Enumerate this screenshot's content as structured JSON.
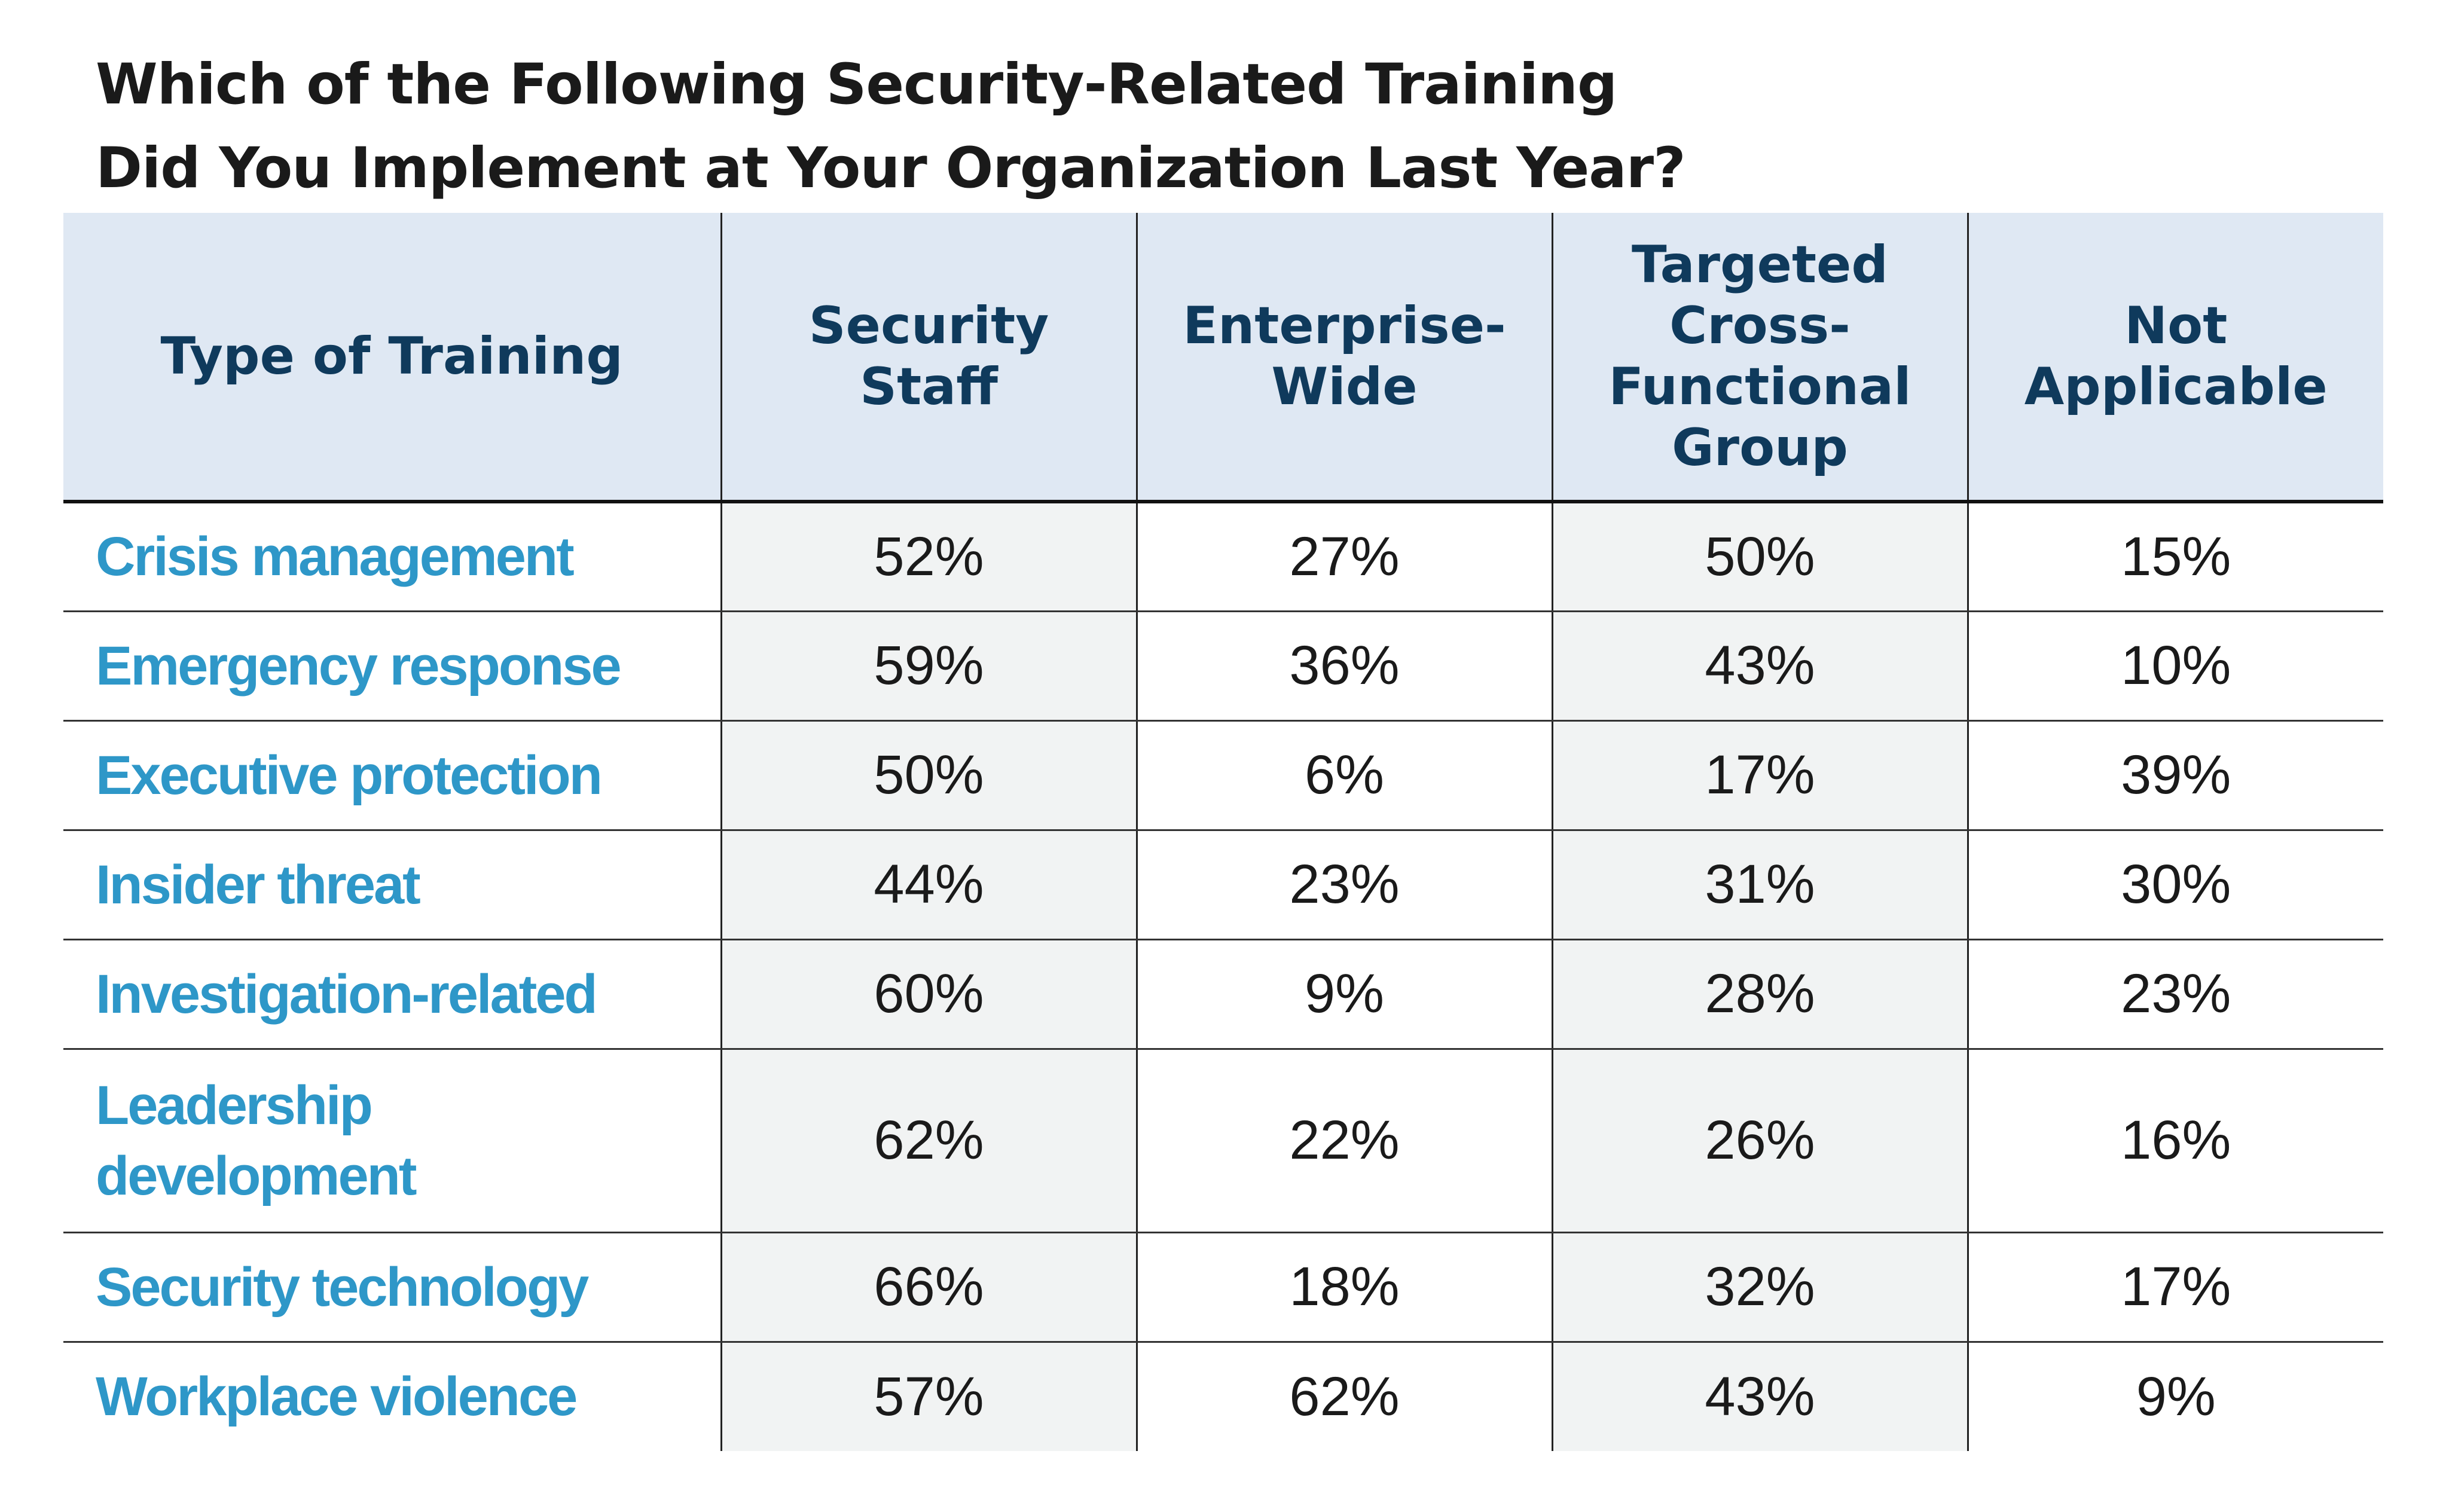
{
  "chart_data": {
    "type": "table",
    "title_lines": [
      "Which of the Following Security-Related Training",
      "Did You Implement at Your Organization Last Year?"
    ],
    "columns": [
      [
        "Type of Training"
      ],
      [
        "Security",
        "Staff"
      ],
      [
        "Enterprise-",
        "Wide"
      ],
      [
        "Targeted",
        "Cross-",
        "Functional",
        "Group"
      ],
      [
        "Not",
        "Applicable"
      ]
    ],
    "rows": [
      {
        "label": [
          "Crisis management"
        ],
        "values": [
          "52%",
          "27%",
          "50%",
          "15%"
        ]
      },
      {
        "label": [
          "Emergency response"
        ],
        "values": [
          "59%",
          "36%",
          "43%",
          "10%"
        ]
      },
      {
        "label": [
          "Executive protection"
        ],
        "values": [
          "50%",
          "6%",
          "17%",
          "39%"
        ]
      },
      {
        "label": [
          "Insider threat"
        ],
        "values": [
          "44%",
          "23%",
          "31%",
          "30%"
        ]
      },
      {
        "label": [
          "Investigation-related"
        ],
        "values": [
          "60%",
          "9%",
          "28%",
          "23%"
        ]
      },
      {
        "label": [
          "Leadership",
          "development"
        ],
        "values": [
          "62%",
          "22%",
          "26%",
          "16%"
        ]
      },
      {
        "label": [
          "Security technology"
        ],
        "values": [
          "66%",
          "18%",
          "32%",
          "17%"
        ]
      },
      {
        "label": [
          "Workplace violence"
        ],
        "values": [
          "57%",
          "62%",
          "43%",
          "9%"
        ]
      }
    ],
    "colors": {
      "header_bg": "#dfe8f3",
      "header_text": "#0f3a5c",
      "row_label": "#2e97c8",
      "value_text": "#1a1a1a",
      "shaded_cell": "#f1f3f3"
    }
  }
}
